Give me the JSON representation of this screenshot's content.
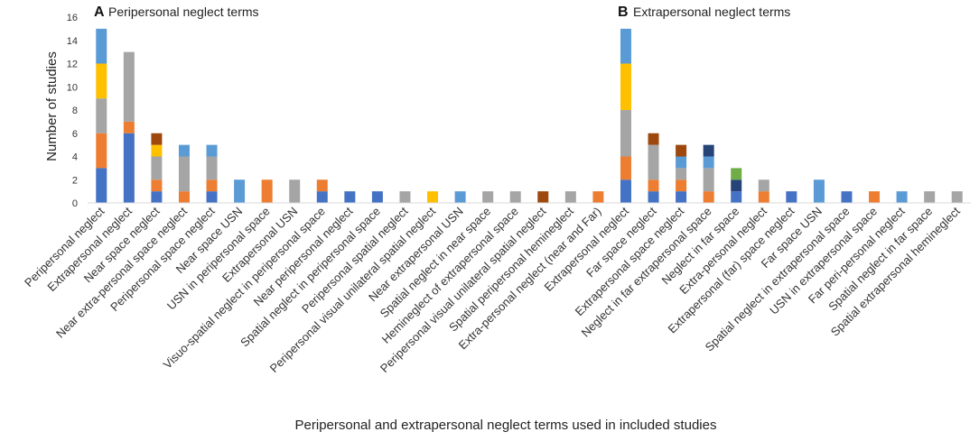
{
  "chart_data": {
    "type": "bar",
    "stacked": true,
    "xlabel": "Peripersonal and extrapersonal neglect terms used in included studies",
    "ylabel": "Number of studies",
    "ylim": [
      0,
      16
    ],
    "yticks": [
      0,
      2,
      4,
      6,
      8,
      10,
      12,
      14,
      16
    ],
    "grid": false,
    "panels": [
      {
        "letter": "A",
        "title": "Peripersonal neglect terms"
      },
      {
        "letter": "B",
        "title": "Extrapersonal neglect terms"
      }
    ],
    "colors": [
      "#4472c4",
      "#ed7d31",
      "#a5a5a5",
      "#ffc000",
      "#5b9bd5",
      "#9e480e",
      "#264478",
      "#70ad47"
    ],
    "categories": [
      "Peripersonal neglect",
      "Extrapersonal neglect",
      "Near space neglect",
      "Near extra-personal space neglect",
      "Peripersonal space neglect",
      "Near space USN",
      "USN in peripersonal space",
      "Extrapersonal USN",
      "Visuo-spatial neglect in peripersonal space",
      "Near peripersonal neglect",
      "Spatial neglect in peripersonal space",
      "Peripersonal spatial neglect",
      "Peripersonal visual unilateral spatial neglect",
      "Near extrapersonal USN",
      "Spatial neglect in near space",
      "Hemineglect of extrapersonal space",
      "Peripersonal visual unilateral spatial neglect",
      "Spatial peripersonal hemineglect",
      "Extra-personal neglect (near and Far)",
      "Extrapersonal neglect",
      "Far space neglect",
      "Extrapersonal space neglect",
      "Neglect in far extrapersonal space",
      "Neglect in far space",
      "Extra-personal neglect",
      "Extrapersonal (far) space neglect",
      "Far space USN",
      "Spatial neglect in extrapersonal space",
      "USN in extrapersonal space",
      "Far peri-personal neglect",
      "Spatial neglect in far space",
      "Spatial extrapersonal hemineglect"
    ],
    "series": [
      {
        "name": "Series 1",
        "values": [
          3,
          6,
          1,
          0,
          1,
          0,
          0,
          0,
          1,
          1,
          1,
          0,
          0,
          0,
          0,
          0,
          0,
          0,
          0,
          2,
          1,
          1,
          0,
          1,
          0,
          1,
          0,
          1,
          0,
          0,
          0,
          0
        ]
      },
      {
        "name": "Series 2",
        "values": [
          3,
          1,
          1,
          1,
          1,
          0,
          2,
          0,
          1,
          0,
          0,
          0,
          0,
          0,
          0,
          0,
          0,
          0,
          1,
          2,
          1,
          1,
          1,
          0,
          1,
          0,
          0,
          0,
          1,
          0,
          0,
          0
        ]
      },
      {
        "name": "Series 3",
        "values": [
          3,
          6,
          2,
          3,
          2,
          0,
          0,
          2,
          0,
          0,
          0,
          1,
          0,
          0,
          1,
          1,
          0,
          1,
          0,
          4,
          3,
          1,
          2,
          0,
          1,
          0,
          0,
          0,
          0,
          0,
          1,
          1
        ]
      },
      {
        "name": "Series 4",
        "values": [
          3,
          0,
          1,
          0,
          0,
          0,
          0,
          0,
          0,
          0,
          0,
          0,
          1,
          0,
          0,
          0,
          0,
          0,
          0,
          4,
          0,
          0,
          0,
          0,
          0,
          0,
          0,
          0,
          0,
          0,
          0,
          0
        ]
      },
      {
        "name": "Series 5",
        "values": [
          3,
          0,
          0,
          1,
          1,
          2,
          0,
          0,
          0,
          0,
          0,
          0,
          0,
          1,
          0,
          0,
          0,
          0,
          0,
          3,
          0,
          1,
          1,
          0,
          0,
          0,
          2,
          0,
          0,
          1,
          0,
          0
        ]
      },
      {
        "name": "Series 6",
        "values": [
          0,
          0,
          1,
          0,
          0,
          0,
          0,
          0,
          0,
          0,
          0,
          0,
          0,
          0,
          0,
          0,
          1,
          0,
          0,
          0,
          1,
          1,
          0,
          0,
          0,
          0,
          0,
          0,
          0,
          0,
          0,
          0
        ]
      },
      {
        "name": "Series 7",
        "values": [
          0,
          0,
          0,
          0,
          0,
          0,
          0,
          0,
          0,
          0,
          0,
          0,
          0,
          0,
          0,
          0,
          0,
          0,
          0,
          0,
          0,
          0,
          1,
          1,
          0,
          0,
          0,
          0,
          0,
          0,
          0,
          0
        ]
      },
      {
        "name": "Series 8",
        "values": [
          0,
          0,
          0,
          0,
          0,
          0,
          0,
          0,
          0,
          0,
          0,
          0,
          0,
          0,
          0,
          0,
          0,
          0,
          0,
          0,
          0,
          0,
          0,
          1,
          0,
          0,
          0,
          0,
          0,
          0,
          0,
          0
        ]
      }
    ]
  }
}
